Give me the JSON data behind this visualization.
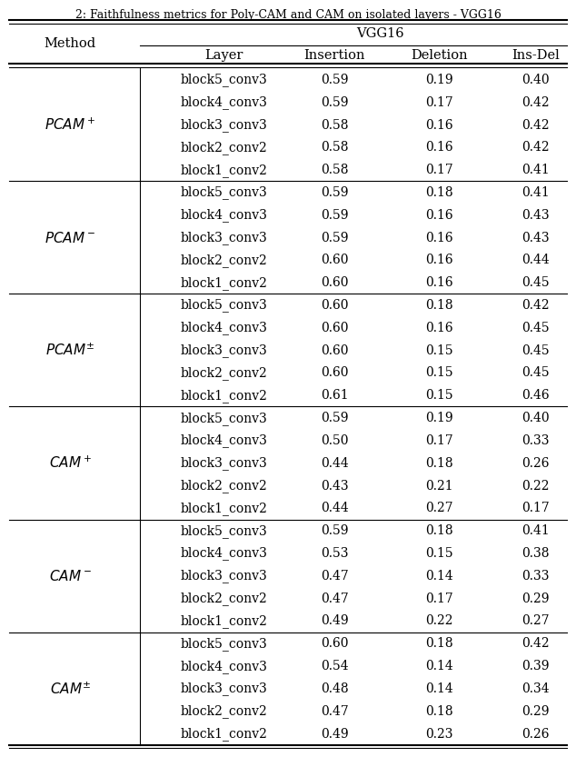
{
  "title": "2: Faithfulness metrics for Poly-CAM and CAM on isolated layers - VGG16",
  "methods": [
    {
      "label_parts": [
        "PCAM",
        "+"
      ],
      "rows": [
        [
          "block5_conv3",
          "0.59",
          "0.19",
          "0.40"
        ],
        [
          "block4_conv3",
          "0.59",
          "0.17",
          "0.42"
        ],
        [
          "block3_conv3",
          "0.58",
          "0.16",
          "0.42"
        ],
        [
          "block2_conv2",
          "0.58",
          "0.16",
          "0.42"
        ],
        [
          "block1_conv2",
          "0.58",
          "0.17",
          "0.41"
        ]
      ]
    },
    {
      "label_parts": [
        "PCAM",
        "-"
      ],
      "rows": [
        [
          "block5_conv3",
          "0.59",
          "0.18",
          "0.41"
        ],
        [
          "block4_conv3",
          "0.59",
          "0.16",
          "0.43"
        ],
        [
          "block3_conv3",
          "0.59",
          "0.16",
          "0.43"
        ],
        [
          "block2_conv2",
          "0.60",
          "0.16",
          "0.44"
        ],
        [
          "block1_conv2",
          "0.60",
          "0.16",
          "0.45"
        ]
      ]
    },
    {
      "label_parts": [
        "PCAM",
        "pm"
      ],
      "rows": [
        [
          "block5_conv3",
          "0.60",
          "0.18",
          "0.42"
        ],
        [
          "block4_conv3",
          "0.60",
          "0.16",
          "0.45"
        ],
        [
          "block3_conv3",
          "0.60",
          "0.15",
          "0.45"
        ],
        [
          "block2_conv2",
          "0.60",
          "0.15",
          "0.45"
        ],
        [
          "block1_conv2",
          "0.61",
          "0.15",
          "0.46"
        ]
      ]
    },
    {
      "label_parts": [
        "CAM",
        "+"
      ],
      "rows": [
        [
          "block5_conv3",
          "0.59",
          "0.19",
          "0.40"
        ],
        [
          "block4_conv3",
          "0.50",
          "0.17",
          "0.33"
        ],
        [
          "block3_conv3",
          "0.44",
          "0.18",
          "0.26"
        ],
        [
          "block2_conv2",
          "0.43",
          "0.21",
          "0.22"
        ],
        [
          "block1_conv2",
          "0.44",
          "0.27",
          "0.17"
        ]
      ]
    },
    {
      "label_parts": [
        "CAM",
        "-"
      ],
      "rows": [
        [
          "block5_conv3",
          "0.59",
          "0.18",
          "0.41"
        ],
        [
          "block4_conv3",
          "0.53",
          "0.15",
          "0.38"
        ],
        [
          "block3_conv3",
          "0.47",
          "0.14",
          "0.33"
        ],
        [
          "block2_conv2",
          "0.47",
          "0.17",
          "0.29"
        ],
        [
          "block1_conv2",
          "0.49",
          "0.22",
          "0.27"
        ]
      ]
    },
    {
      "label_parts": [
        "CAM",
        "pm"
      ],
      "rows": [
        [
          "block5_conv3",
          "0.60",
          "0.18",
          "0.42"
        ],
        [
          "block4_conv3",
          "0.54",
          "0.14",
          "0.39"
        ],
        [
          "block3_conv3",
          "0.48",
          "0.14",
          "0.34"
        ],
        [
          "block2_conv2",
          "0.47",
          "0.18",
          "0.29"
        ],
        [
          "block1_conv2",
          "0.49",
          "0.23",
          "0.26"
        ]
      ]
    }
  ],
  "col_headers": [
    "Layer",
    "Insertion",
    "Deletion",
    "Ins-Del"
  ],
  "bg_color": "#ffffff",
  "text_color": "#000000",
  "line_color": "#000000",
  "title_fontsize": 9.0,
  "header_fontsize": 10.5,
  "data_fontsize": 10.0,
  "method_fontsize": 11.0
}
